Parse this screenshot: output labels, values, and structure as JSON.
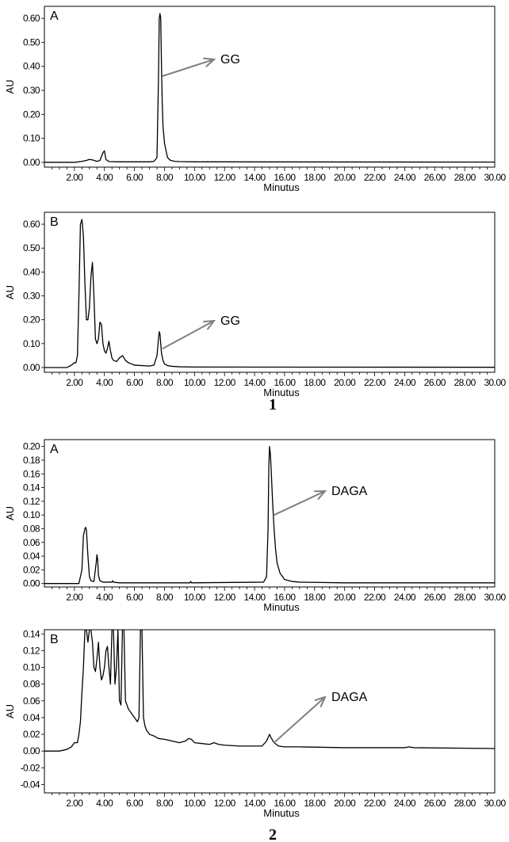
{
  "figure_labels": [
    "1",
    "2"
  ],
  "chart_data": [
    {
      "type": "line",
      "group": "1",
      "panel": "A",
      "xlabel": "Minutus",
      "ylabel": "AU",
      "xlim": [
        0,
        30
      ],
      "ylim": [
        -0.02,
        0.65
      ],
      "xticks": [
        "2.00",
        "4.00",
        "6.00",
        "8.00",
        "10.00",
        "12.00",
        "14.00",
        "16.00",
        "18.00",
        "20.00",
        "22.00",
        "24.00",
        "26.00",
        "28.00",
        "30.00"
      ],
      "yticks": [
        "0.00",
        "0.10",
        "0.20",
        "0.30",
        "0.40",
        "0.50",
        "0.60"
      ],
      "ytick_values": [
        0,
        0.1,
        0.2,
        0.3,
        0.4,
        0.5,
        0.6
      ],
      "series": [
        {
          "x": [
            0,
            2.0,
            2.5,
            2.8,
            3.0,
            3.2,
            3.5,
            3.7,
            3.9,
            4.0,
            4.1,
            4.3,
            5,
            6,
            7,
            7.3,
            7.5,
            7.6,
            7.65,
            7.7,
            7.75,
            7.8,
            7.85,
            7.9,
            8.0,
            8.1,
            8.2,
            8.4,
            8.7,
            9,
            10,
            30
          ],
          "y": [
            0,
            0,
            0.004,
            0.008,
            0.012,
            0.01,
            0.004,
            0.008,
            0.04,
            0.048,
            0.012,
            0.003,
            0.002,
            0.002,
            0.002,
            0.004,
            0.02,
            0.35,
            0.6,
            0.62,
            0.6,
            0.4,
            0.25,
            0.15,
            0.08,
            0.05,
            0.02,
            0.008,
            0.004,
            0.003,
            0.002,
            0.001
          ]
        }
      ],
      "annotation": {
        "text": "GG",
        "x": 7.9,
        "y": 0.36
      }
    },
    {
      "type": "line",
      "group": "1",
      "panel": "B",
      "xlabel": "Minutus",
      "ylabel": "AU",
      "xlim": [
        0,
        30
      ],
      "ylim": [
        -0.02,
        0.65
      ],
      "xticks": [
        "2.00",
        "4.00",
        "6.00",
        "8.00",
        "10.00",
        "12.00",
        "14.00",
        "16.00",
        "18.00",
        "20.00",
        "22.00",
        "24.00",
        "26.00",
        "28.00",
        "30.00"
      ],
      "yticks": [
        "0.00",
        "0.10",
        "0.20",
        "0.30",
        "0.40",
        "0.50",
        "0.60"
      ],
      "ytick_values": [
        0,
        0.1,
        0.2,
        0.3,
        0.4,
        0.5,
        0.6
      ],
      "series": [
        {
          "x": [
            0,
            1.5,
            1.8,
            2.0,
            2.1,
            2.2,
            2.3,
            2.4,
            2.5,
            2.6,
            2.7,
            2.8,
            2.9,
            3.0,
            3.1,
            3.2,
            3.3,
            3.4,
            3.5,
            3.6,
            3.7,
            3.8,
            3.9,
            4.0,
            4.1,
            4.2,
            4.3,
            4.4,
            4.5,
            4.6,
            4.8,
            5.0,
            5.2,
            5.4,
            5.6,
            5.8,
            6.0,
            6.5,
            7.0,
            7.3,
            7.5,
            7.6,
            7.65,
            7.7,
            7.8,
            7.9,
            8.0,
            8.2,
            8.5,
            9,
            10,
            30
          ],
          "y": [
            0,
            0,
            0.01,
            0.02,
            0.02,
            0.05,
            0.3,
            0.6,
            0.62,
            0.55,
            0.35,
            0.2,
            0.2,
            0.25,
            0.38,
            0.44,
            0.3,
            0.12,
            0.1,
            0.12,
            0.19,
            0.18,
            0.1,
            0.07,
            0.06,
            0.08,
            0.11,
            0.07,
            0.04,
            0.03,
            0.025,
            0.04,
            0.05,
            0.03,
            0.02,
            0.015,
            0.01,
            0.008,
            0.006,
            0.01,
            0.05,
            0.12,
            0.15,
            0.14,
            0.06,
            0.03,
            0.015,
            0.008,
            0.005,
            0.003,
            0.002,
            0.001
          ]
        }
      ],
      "annotation": {
        "text": "GG",
        "x": 7.9,
        "y": 0.08
      }
    },
    {
      "type": "line",
      "group": "2",
      "panel": "A",
      "xlabel": "Minutus",
      "ylabel": "AU",
      "xlim": [
        0,
        30
      ],
      "ylim": [
        -0.005,
        0.21
      ],
      "xticks": [
        "2.00",
        "4.00",
        "6.00",
        "8.00",
        "10.00",
        "12.00",
        "14.00",
        "16.00",
        "18.00",
        "20.00",
        "22.00",
        "24.00",
        "26.00",
        "28.00",
        "30.00"
      ],
      "yticks": [
        "0.00",
        "0.02",
        "0.04",
        "0.06",
        "0.08",
        "0.10",
        "0.12",
        "0.14",
        "0.16",
        "0.18",
        "0.20"
      ],
      "ytick_values": [
        0,
        0.02,
        0.04,
        0.06,
        0.08,
        0.1,
        0.12,
        0.14,
        0.16,
        0.18,
        0.2
      ],
      "series": [
        {
          "x": [
            0,
            2.3,
            2.5,
            2.6,
            2.7,
            2.75,
            2.8,
            2.9,
            3.0,
            3.1,
            3.3,
            3.45,
            3.5,
            3.55,
            3.6,
            3.7,
            3.9,
            4.5,
            4.55,
            4.6,
            5,
            9.7,
            9.75,
            9.8,
            14.6,
            14.8,
            14.9,
            14.95,
            15.0,
            15.05,
            15.1,
            15.2,
            15.3,
            15.4,
            15.5,
            15.7,
            16.0,
            16.5,
            17,
            20,
            30
          ],
          "y": [
            0,
            0,
            0.02,
            0.07,
            0.08,
            0.082,
            0.078,
            0.04,
            0.01,
            0.004,
            0.003,
            0.03,
            0.042,
            0.035,
            0.012,
            0.004,
            0.002,
            0.002,
            0.004,
            0.002,
            0.001,
            0.001,
            0.003,
            0.001,
            0.002,
            0.01,
            0.08,
            0.17,
            0.2,
            0.19,
            0.17,
            0.12,
            0.08,
            0.05,
            0.03,
            0.015,
            0.006,
            0.003,
            0.002,
            0.001,
            0.001
          ]
        }
      ],
      "annotation": {
        "text": "DAGA",
        "x": 15.3,
        "y": 0.1
      }
    },
    {
      "type": "line",
      "group": "2",
      "panel": "B",
      "xlabel": "Minutus",
      "ylabel": "AU",
      "xlim": [
        0,
        30
      ],
      "ylim": [
        -0.05,
        0.145
      ],
      "xticks": [
        "2.00",
        "4.00",
        "6.00",
        "8.00",
        "10.00",
        "12.00",
        "14.00",
        "16.00",
        "18.00",
        "20.00",
        "22.00",
        "24.00",
        "26.00",
        "28.00",
        "30.00"
      ],
      "yticks": [
        "-0.04",
        "-0.02",
        "0.00",
        "0.02",
        "0.04",
        "0.06",
        "0.08",
        "0.10",
        "0.12",
        "0.14"
      ],
      "ytick_values": [
        -0.04,
        -0.02,
        0,
        0.02,
        0.04,
        0.06,
        0.08,
        0.1,
        0.12,
        0.14
      ],
      "series": [
        {
          "x": [
            0,
            1.0,
            1.5,
            1.8,
            2.0,
            2.2,
            2.3,
            2.4,
            2.5,
            2.6,
            2.7,
            2.8,
            2.9,
            3.0,
            3.1,
            3.2,
            3.3,
            3.4,
            3.5,
            3.6,
            3.7,
            3.8,
            3.9,
            4.0,
            4.1,
            4.2,
            4.3,
            4.4,
            4.5,
            4.6,
            4.7,
            4.8,
            4.9,
            5.0,
            5.1,
            5.2,
            5.3,
            5.4,
            5.5,
            5.6,
            5.8,
            6.0,
            6.2,
            6.3,
            6.4,
            6.5,
            6.6,
            6.7,
            6.8,
            7.0,
            7.3,
            7.6,
            8.0,
            8.5,
            9.0,
            9.4,
            9.6,
            9.8,
            10.0,
            10.5,
            11.0,
            11.3,
            11.6,
            12.0,
            13.0,
            14.0,
            14.5,
            14.8,
            14.95,
            15.0,
            15.1,
            15.3,
            15.6,
            16.0,
            17,
            20,
            24,
            24.3,
            24.6,
            30
          ],
          "y": [
            0,
            0,
            0.002,
            0.005,
            0.01,
            0.01,
            0.02,
            0.035,
            0.07,
            0.1,
            0.145,
            0.145,
            0.13,
            0.145,
            0.145,
            0.13,
            0.1,
            0.095,
            0.11,
            0.13,
            0.1,
            0.085,
            0.09,
            0.1,
            0.12,
            0.125,
            0.1,
            0.08,
            0.145,
            0.145,
            0.08,
            0.1,
            0.145,
            0.06,
            0.055,
            0.145,
            0.145,
            0.06,
            0.055,
            0.05,
            0.045,
            0.04,
            0.035,
            0.04,
            0.145,
            0.145,
            0.04,
            0.03,
            0.025,
            0.02,
            0.018,
            0.015,
            0.014,
            0.012,
            0.01,
            0.012,
            0.015,
            0.014,
            0.01,
            0.009,
            0.008,
            0.01,
            0.008,
            0.007,
            0.006,
            0.006,
            0.006,
            0.012,
            0.018,
            0.02,
            0.016,
            0.01,
            0.006,
            0.005,
            0.005,
            0.004,
            0.004,
            0.005,
            0.004,
            0.003
          ]
        }
      ],
      "annotation": {
        "text": "DAGA",
        "x": 15.3,
        "y": 0.01
      }
    }
  ]
}
